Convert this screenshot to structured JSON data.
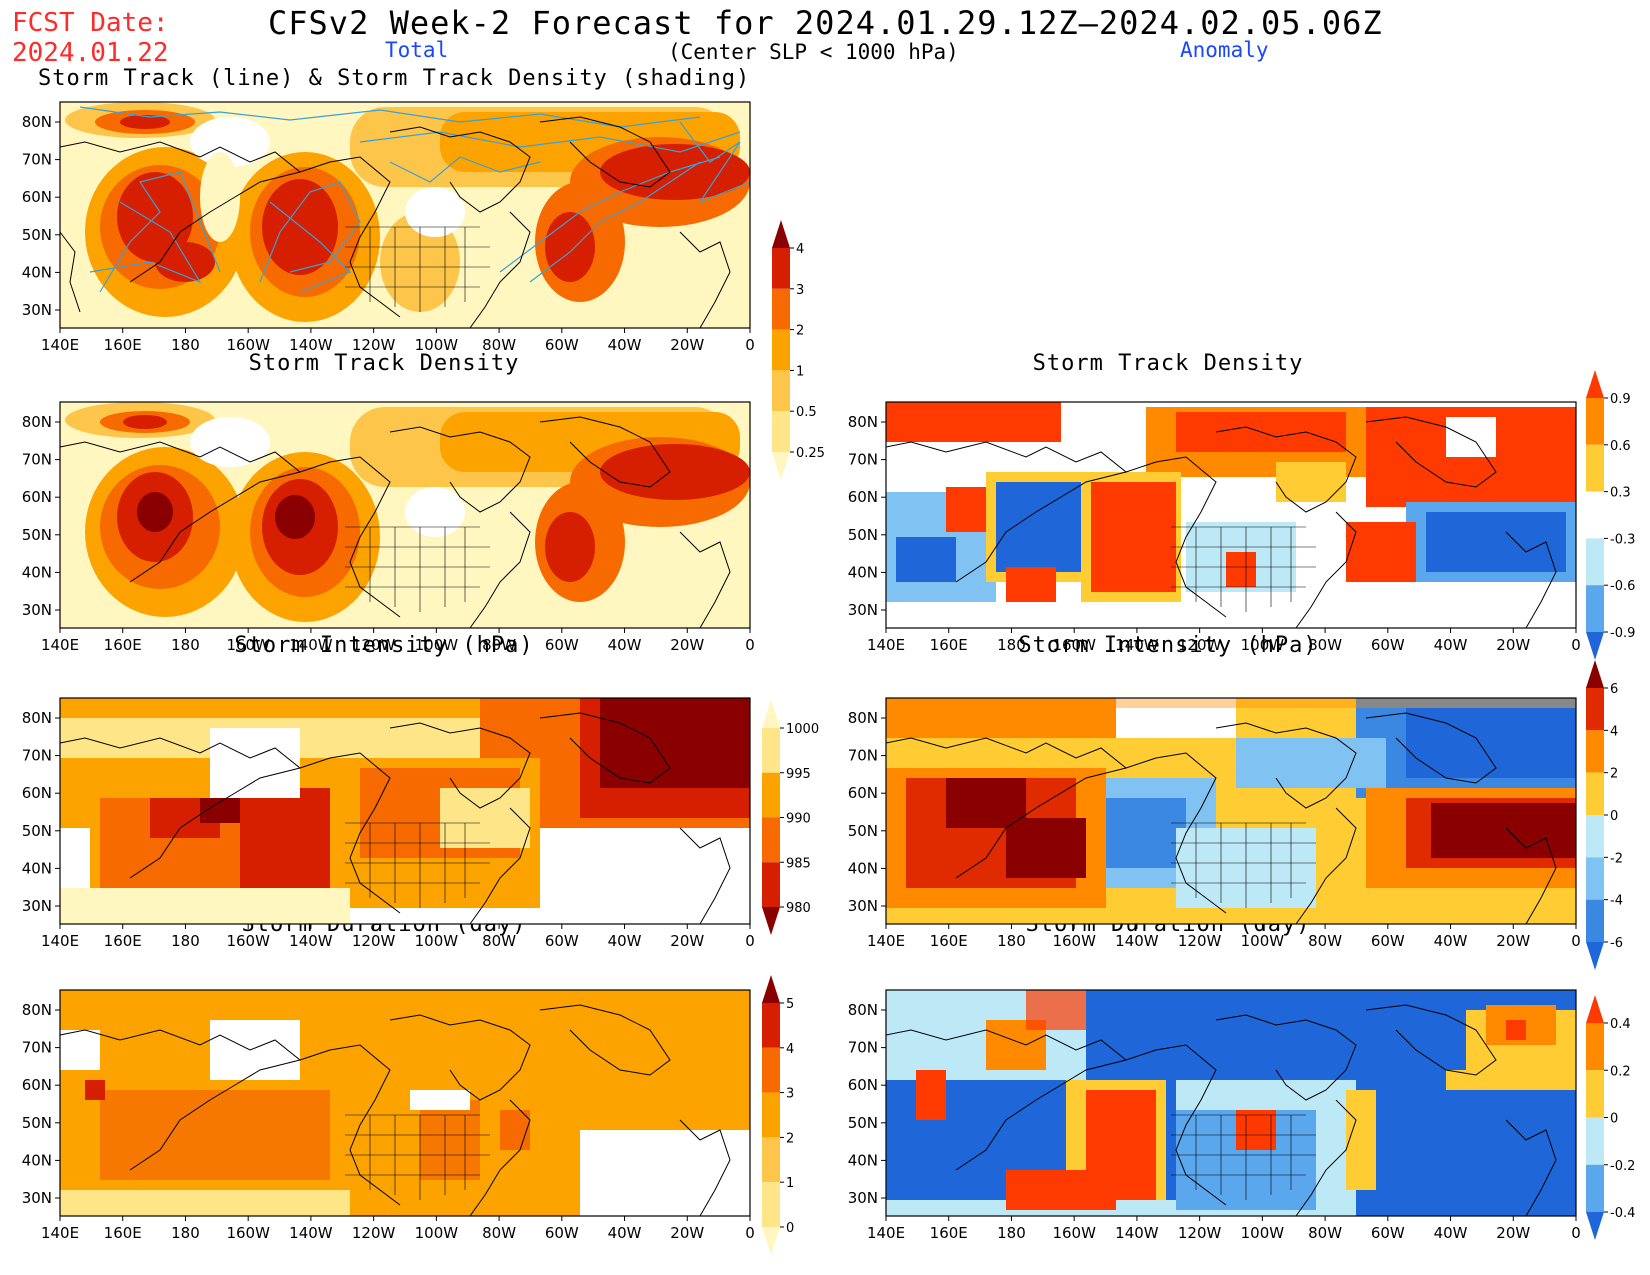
{
  "header": {
    "fcst_label": "FCST Date:",
    "fcst_date": "2024.01.22",
    "title": "CFSv2 Week-2 Forecast for 2024.01.29.12Z—2024.02.05.06Z",
    "subtitle": "(Center SLP < 1000 hPa)",
    "col_total": "Total",
    "col_anomaly": "Anomaly"
  },
  "axes": {
    "lat_labels": [
      "80N",
      "70N",
      "60N",
      "50N",
      "40N",
      "30N"
    ],
    "lon_labels": [
      "140E",
      "160E",
      "180",
      "160W",
      "140W",
      "120W",
      "100W",
      "80W",
      "60W",
      "40W",
      "20W",
      "0"
    ]
  },
  "panels": {
    "p1": {
      "title": "Storm Track (line) & Storm Track Density (shading)"
    },
    "p2": {
      "title": "Storm Track Density"
    },
    "p3": {
      "title": "Storm Track Density"
    },
    "p4": {
      "title": "Storm Intensity (hPa)"
    },
    "p5": {
      "title": "Storm Intensity (hPa)"
    },
    "p6": {
      "title": "Storm Duration (day)"
    },
    "p7": {
      "title": "Storm Duration (day)"
    }
  },
  "colorbars": {
    "density_total": {
      "labels": [
        "4",
        "3",
        "2",
        "1",
        "0.5",
        "0.25"
      ],
      "colors": [
        "#8a0000",
        "#d61e00",
        "#f66a00",
        "#fca300",
        "#fdc64a",
        "#fee588",
        "#fff7bf"
      ]
    },
    "density_anomaly": {
      "labels": [
        "0.9",
        "0.6",
        "0.3",
        "-0.3",
        "-0.6",
        "-0.9"
      ],
      "colors": [
        "#ff3a00",
        "#ff8a00",
        "#ffcc33",
        "#ffffff",
        "#bde9f7",
        "#5aa7ee",
        "#1f66d8"
      ]
    },
    "intensity_total": {
      "labels": [
        "1000",
        "995",
        "990",
        "985",
        "980"
      ],
      "colors": [
        "#fff7bf",
        "#fee588",
        "#fca300",
        "#f66a00",
        "#d61e00",
        "#8a0000"
      ]
    },
    "intensity_anomaly": {
      "labels": [
        "6",
        "4",
        "2",
        "0",
        "-2",
        "-4",
        "-6"
      ],
      "colors": [
        "#8a0000",
        "#e02a00",
        "#ff8a00",
        "#ffcc33",
        "#bde9f7",
        "#80c2f2",
        "#3b88e3",
        "#1f66d8"
      ]
    },
    "duration_total": {
      "labels": [
        "5",
        "4",
        "3",
        "2",
        "1",
        "0"
      ],
      "colors": [
        "#8a0000",
        "#d61e00",
        "#f66a00",
        "#fca300",
        "#fdc64a",
        "#fee588",
        "#fff7bf"
      ]
    },
    "duration_anomaly": {
      "labels": [
        "0.4",
        "0.2",
        "0",
        "-0.2",
        "-0.4"
      ],
      "colors": [
        "#ff3a00",
        "#ff8a00",
        "#ffcc33",
        "#bde9f7",
        "#5aa7ee",
        "#1f66d8"
      ]
    }
  }
}
